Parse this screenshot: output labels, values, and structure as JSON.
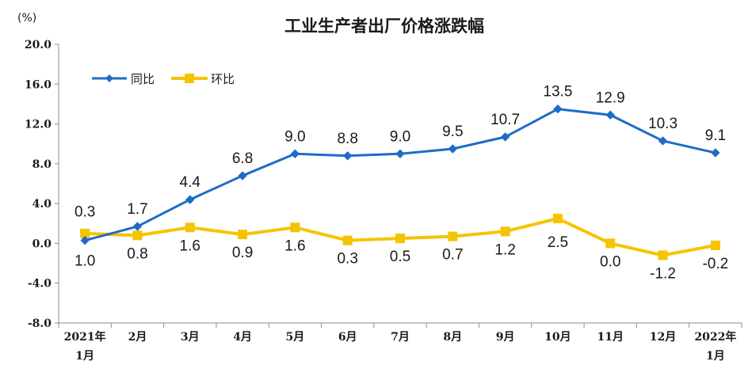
{
  "chart_data": {
    "type": "line",
    "title": "工业生产者出厂价格涨跌幅",
    "unit_label": "(%)",
    "categories": [
      [
        "2021年",
        "1月"
      ],
      [
        "2月"
      ],
      [
        "3月"
      ],
      [
        "4月"
      ],
      [
        "5月"
      ],
      [
        "6月"
      ],
      [
        "7月"
      ],
      [
        "8月"
      ],
      [
        "9月"
      ],
      [
        "10月"
      ],
      [
        "11月"
      ],
      [
        "12月"
      ],
      [
        "2022年",
        "1月"
      ]
    ],
    "yticks": [
      "20.0",
      "16.0",
      "12.0",
      "8.0",
      "4.0",
      "0.0",
      "-4.0",
      "-8.0"
    ],
    "ylim": [
      -8,
      20
    ],
    "legend_position": "top-left",
    "series": [
      {
        "name": "同比",
        "color": "#1f6cc7",
        "marker": "diamond",
        "values": [
          0.3,
          1.7,
          4.4,
          6.8,
          9.0,
          8.8,
          9.0,
          9.5,
          10.7,
          13.5,
          12.9,
          10.3,
          9.1
        ],
        "labels": [
          "0.3",
          "1.7",
          "4.4",
          "6.8",
          "9.0",
          "8.8",
          "9.0",
          "9.5",
          "10.7",
          "13.5",
          "12.9",
          "10.3",
          "9.1"
        ]
      },
      {
        "name": "环比",
        "color": "#f5c400",
        "marker": "square",
        "values": [
          1.0,
          0.8,
          1.6,
          0.9,
          1.6,
          0.3,
          0.5,
          0.7,
          1.2,
          2.5,
          0.0,
          -1.2,
          -0.2
        ],
        "labels": [
          "1.0",
          "0.8",
          "1.6",
          "0.9",
          "1.6",
          "0.3",
          "0.5",
          "0.7",
          "1.2",
          "2.5",
          "0.0",
          "-1.2",
          "-0.2"
        ]
      }
    ]
  }
}
